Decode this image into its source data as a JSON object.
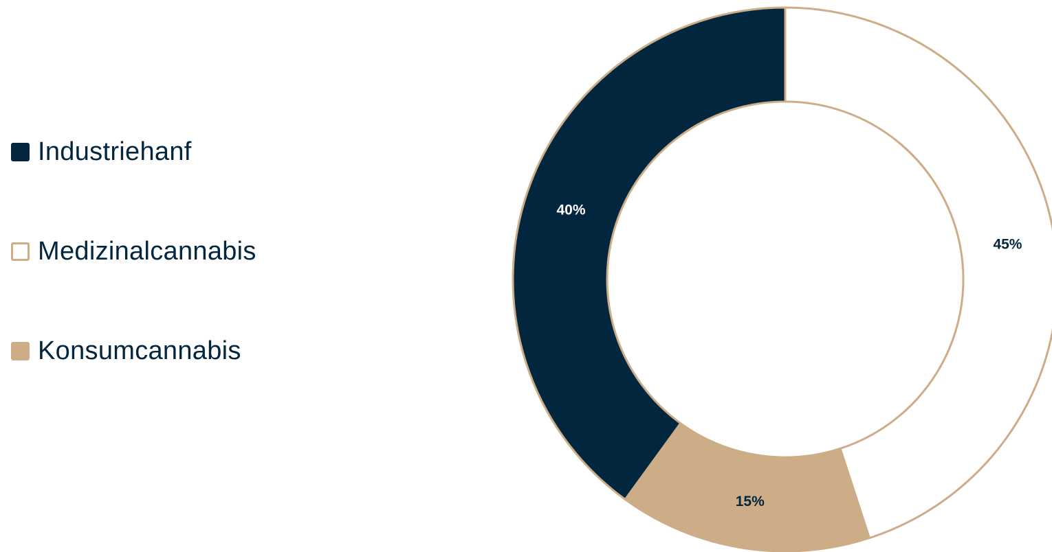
{
  "chart_data": {
    "type": "pie",
    "variant": "donut",
    "title": "",
    "categories": [
      "Industriehanf",
      "Medizinalcannabis",
      "Konsumcannabis"
    ],
    "values": [
      40,
      45,
      15
    ],
    "value_labels": [
      "40%",
      "45%",
      "15%"
    ],
    "unit": "%",
    "legend_position": "left",
    "colors": {
      "Industriehanf": "#03263f",
      "Medizinalcannabis": "#ffffff",
      "Konsumcannabis": "#cdad88"
    },
    "outline_color": "#cdad88",
    "label_colors": {
      "Industriehanf": "#ffffff",
      "Medizinalcannabis": "#03263f",
      "Konsumcannabis": "#03263f"
    }
  }
}
